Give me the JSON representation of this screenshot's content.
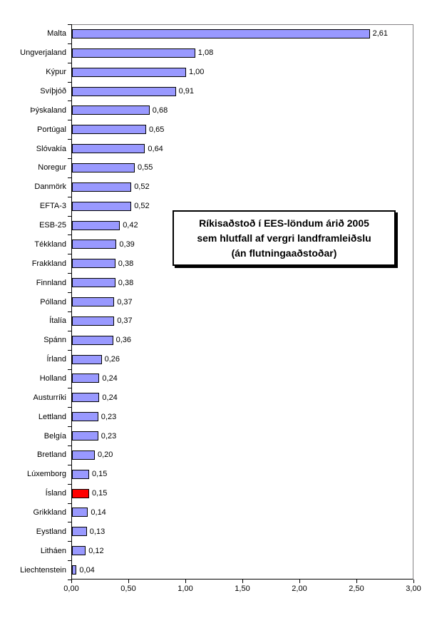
{
  "chart_data": {
    "type": "bar",
    "orientation": "horizontal",
    "title": "Ríkisaðstoð í EES-löndum árið 2005 sem hlutfall af vergri landframleiðslu (án flutningaaðstoðar)",
    "title_display": "Ríkisaðstoð í EES-löndum árið 2005\nsem hlutfall af vergri landframleiðslu\n(án flutningaaðstoðar)",
    "categories": [
      "Malta",
      "Ungverjaland",
      "Kýpur",
      "Svíþjóð",
      "Þýskaland",
      "Portúgal",
      "Slóvakía",
      "Noregur",
      "Danmörk",
      "EFTA-3",
      "ESB-25",
      "Tékkland",
      "Frakkland",
      "Finnland",
      "Pólland",
      "Ítalía",
      "Spánn",
      "Írland",
      "Holland",
      "Austurríki",
      "Lettland",
      "Belgía",
      "Bretland",
      "Lúxemborg",
      "Ísland",
      "Grikkland",
      "Eystland",
      "Litháen",
      "Liechtenstein"
    ],
    "values": [
      2.61,
      1.08,
      1.0,
      0.91,
      0.68,
      0.65,
      0.64,
      0.55,
      0.52,
      0.52,
      0.42,
      0.39,
      0.38,
      0.38,
      0.37,
      0.37,
      0.36,
      0.26,
      0.24,
      0.24,
      0.23,
      0.23,
      0.2,
      0.15,
      0.15,
      0.14,
      0.13,
      0.12,
      0.04
    ],
    "value_labels": [
      "2,61",
      "1,08",
      "1,00",
      "0,91",
      "0,68",
      "0,65",
      "0,64",
      "0,55",
      "0,52",
      "0,52",
      "0,42",
      "0,39",
      "0,38",
      "0,38",
      "0,37",
      "0,37",
      "0,36",
      "0,26",
      "0,24",
      "0,24",
      "0,23",
      "0,23",
      "0,20",
      "0,15",
      "0,15",
      "0,14",
      "0,13",
      "0,12",
      "0,04"
    ],
    "x_ticks": [
      "0,00",
      "0,50",
      "1,00",
      "1,50",
      "2,00",
      "2,50",
      "3,00"
    ],
    "xlim": [
      0,
      3.0
    ],
    "xlabel": "",
    "ylabel": "",
    "grid": false,
    "legend": "none",
    "bar_color": "#9999FF",
    "bar_border_color": "#000000",
    "highlight_index": 24,
    "highlight_category": "Ísland",
    "highlight_color": "#FF0000",
    "plot_border_color": "#848284",
    "axis_color": "#000000"
  }
}
